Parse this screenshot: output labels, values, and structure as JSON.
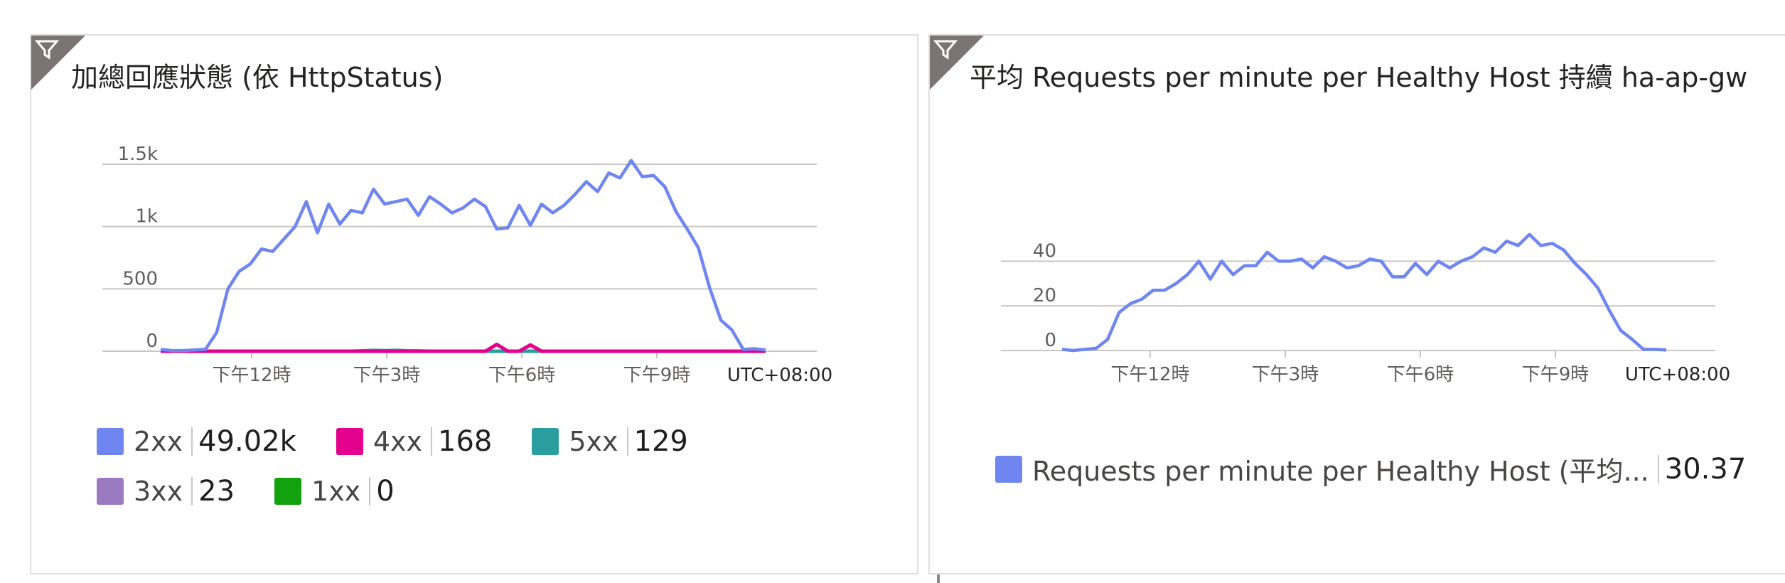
{
  "tiles": [
    {
      "title": "加總回應狀態 (依 HttpStatus)",
      "legend": [
        {
          "name": "2xx",
          "value": "49.02k",
          "color": "#6f86f0"
        },
        {
          "name": "4xx",
          "value": "168",
          "color": "#e3008c"
        },
        {
          "name": "5xx",
          "value": "129",
          "color": "#2a9d9f"
        },
        {
          "name": "3xx",
          "value": "23",
          "color": "#9b7ac2"
        },
        {
          "name": "1xx",
          "value": "0",
          "color": "#13a10e"
        }
      ]
    },
    {
      "title": "平均 Requests per minute per Healthy Host 持續 ha-ap-gw",
      "legend": [
        {
          "name": "Requests per minute per Healthy Host (平均...",
          "value": "30.37",
          "color": "#6f86f0"
        }
      ]
    }
  ],
  "chart_data": [
    {
      "type": "line",
      "x_ticks": [
        "下午12時",
        "下午3時",
        "下午6時",
        "下午9時"
      ],
      "timezone_label": "UTC+08:00",
      "y_ticks": [
        "0",
        "500",
        "1k",
        "1.5k"
      ],
      "ylim": [
        0,
        1500
      ],
      "grid": true,
      "series": [
        {
          "name": "2xx",
          "values": [
            15,
            5,
            5,
            10,
            15,
            150,
            500,
            640,
            700,
            820,
            800,
            900,
            1000,
            1200,
            950,
            1180,
            1020,
            1130,
            1110,
            1300,
            1180,
            1200,
            1220,
            1090,
            1240,
            1180,
            1110,
            1150,
            1220,
            1160,
            980,
            990,
            1170,
            1010,
            1180,
            1110,
            1170,
            1260,
            1360,
            1280,
            1430,
            1390,
            1530,
            1400,
            1410,
            1320,
            1120,
            980,
            830,
            510,
            250,
            170,
            15,
            20,
            10
          ]
        },
        {
          "name": "4xx",
          "values": [
            0,
            0,
            0,
            0,
            0,
            0,
            0,
            0,
            0,
            0,
            0,
            0,
            0,
            0,
            0,
            0,
            0,
            0,
            0,
            0,
            0,
            0,
            0,
            0,
            0,
            0,
            0,
            0,
            0,
            0,
            55,
            0,
            0,
            50,
            0,
            0,
            0,
            0,
            0,
            0,
            0,
            0,
            0,
            0,
            0,
            0,
            0,
            0,
            0,
            0,
            0,
            0,
            0,
            0,
            0
          ]
        },
        {
          "name": "5xx",
          "values": [
            0,
            0,
            0,
            0,
            0,
            0,
            0,
            0,
            0,
            0,
            0,
            0,
            0,
            0,
            0,
            0,
            0,
            0,
            3,
            6,
            4,
            6,
            3,
            2,
            0,
            0,
            0,
            0,
            0,
            0,
            0,
            0,
            0,
            0,
            0,
            0,
            0,
            0,
            0,
            0,
            0,
            0,
            0,
            0,
            0,
            0,
            0,
            0,
            0,
            0,
            0,
            0,
            0,
            5,
            0
          ]
        },
        {
          "name": "3xx",
          "values": [
            0,
            0,
            0,
            0,
            0,
            0,
            0,
            0,
            0,
            0,
            0,
            0,
            0,
            0,
            0,
            0,
            0,
            0,
            0,
            0,
            0,
            0,
            0,
            0,
            0,
            0,
            0,
            0,
            0,
            0,
            0,
            0,
            0,
            0,
            0,
            0,
            0,
            0,
            0,
            0,
            0,
            0,
            0,
            0,
            0,
            0,
            0,
            0,
            0,
            0,
            0,
            0,
            0,
            0,
            0
          ]
        },
        {
          "name": "1xx",
          "values": [
            0,
            0,
            0,
            0,
            0,
            0,
            0,
            0,
            0,
            0,
            0,
            0,
            0,
            0,
            0,
            0,
            0,
            0,
            0,
            0,
            0,
            0,
            0,
            0,
            0,
            0,
            0,
            0,
            0,
            0,
            0,
            0,
            0,
            0,
            0,
            0,
            0,
            0,
            0,
            0,
            0,
            0,
            0,
            0,
            0,
            0,
            0,
            0,
            0,
            0,
            0,
            0,
            0,
            0,
            0
          ]
        }
      ]
    },
    {
      "type": "line",
      "x_ticks": [
        "下午12時",
        "下午3時",
        "下午6時",
        "下午9時"
      ],
      "timezone_label": "UTC+08:00",
      "y_ticks": [
        "0",
        "20",
        "40"
      ],
      "ylim": [
        0,
        50
      ],
      "grid": true,
      "series": [
        {
          "name": "Requests per minute per Healthy Host (平均...",
          "values": [
            0.5,
            0,
            0.5,
            1,
            5,
            17,
            21,
            23,
            27,
            27,
            30,
            34,
            40,
            32,
            40,
            34,
            38,
            38,
            44,
            40,
            40,
            41,
            37,
            42,
            40,
            37,
            38,
            41,
            40,
            33,
            33,
            39,
            34,
            40,
            37,
            40,
            42,
            46,
            44,
            49,
            47,
            52,
            47,
            48,
            45,
            39,
            34,
            28,
            18,
            9,
            5,
            0.5,
            0.5,
            0.2
          ]
        }
      ]
    }
  ]
}
